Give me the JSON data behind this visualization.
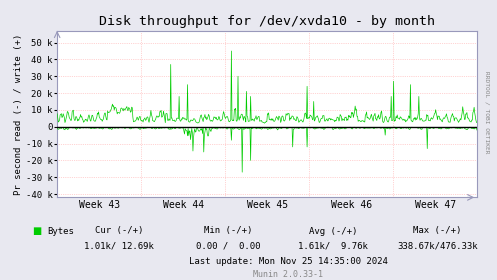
{
  "title": "Disk throughput for /dev/xvda10 - by month",
  "ylabel": "Pr second read (-) / write (+)",
  "right_label": "RRDTOOL / TOBI OETIKER",
  "xlabel_ticks": [
    "Week 43",
    "Week 44",
    "Week 45",
    "Week 46",
    "Week 47"
  ],
  "ylim": [
    -42000,
    57000
  ],
  "yticks": [
    -40000,
    -30000,
    -20000,
    -10000,
    0,
    10000,
    20000,
    30000,
    40000,
    50000
  ],
  "ytick_labels": [
    "-40 k",
    "-30 k",
    "-20 k",
    "-10 k",
    "0",
    "10 k",
    "20 k",
    "30 k",
    "40 k",
    "50 k"
  ],
  "background_color": "#e8e8f0",
  "plot_bg_color": "#ffffff",
  "grid_color": "#ffaaaa",
  "line_color": "#00cc00",
  "zero_line_color": "#000000",
  "legend_label": "Bytes",
  "legend_color": "#00cc00",
  "footer_munin": "Munin 2.0.33-1",
  "num_points": 700
}
